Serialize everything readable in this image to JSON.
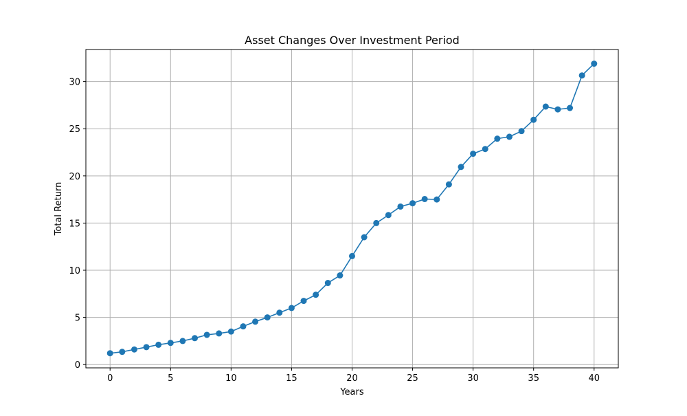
{
  "chart_data": {
    "type": "line",
    "title": "Asset Changes Over Investment Period",
    "xlabel": "Years",
    "ylabel": "Total Return",
    "xlim": [
      -2,
      42
    ],
    "ylim": [
      -0.35,
      33.4
    ],
    "xticks": [
      0,
      5,
      10,
      15,
      20,
      25,
      30,
      35,
      40
    ],
    "yticks": [
      0,
      5,
      10,
      15,
      20,
      25,
      30
    ],
    "grid": true,
    "legend": "none",
    "colors": {
      "series": "#1f77b4",
      "grid": "#b0b0b0",
      "axes": "#000000"
    },
    "markers": "circle",
    "series": [
      {
        "x": [
          0,
          1,
          2,
          3,
          4,
          5,
          6,
          7,
          8,
          9,
          10,
          11,
          12,
          13,
          14,
          15,
          16,
          17,
          18,
          19,
          20,
          21,
          22,
          23,
          24,
          25,
          26,
          27,
          28,
          29,
          30,
          31,
          32,
          33,
          34,
          35,
          36,
          37,
          38,
          39,
          40
        ],
        "values": [
          1.2,
          1.35,
          1.6,
          1.85,
          2.1,
          2.3,
          2.5,
          2.8,
          3.15,
          3.3,
          3.5,
          4.05,
          4.55,
          5.0,
          5.5,
          6.0,
          6.75,
          7.4,
          8.65,
          9.45,
          11.5,
          13.5,
          15.0,
          15.85,
          16.75,
          17.1,
          17.55,
          17.5,
          19.1,
          20.95,
          22.35,
          22.85,
          23.95,
          24.15,
          24.75,
          25.95,
          27.35,
          27.05,
          27.2,
          30.65,
          31.9
        ]
      }
    ]
  }
}
